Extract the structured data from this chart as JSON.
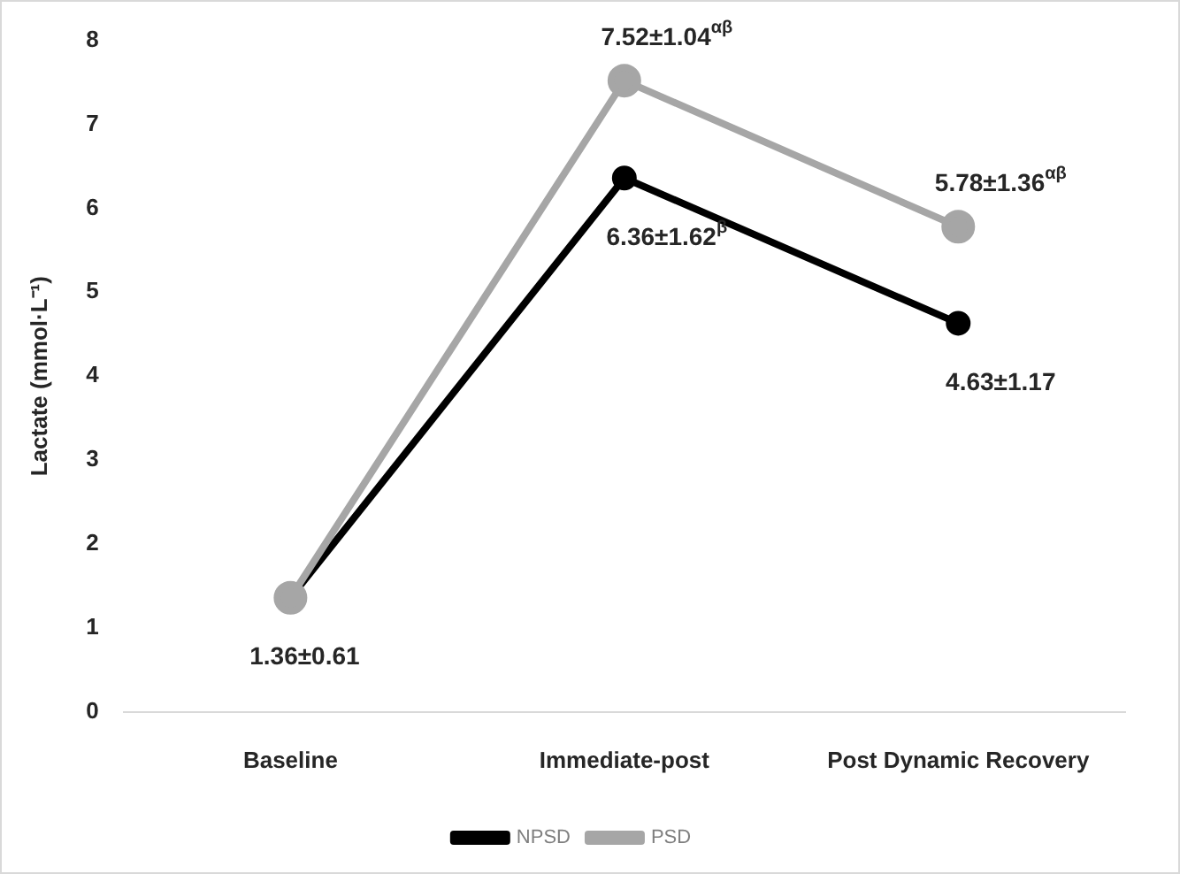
{
  "chart_data": {
    "type": "line",
    "ylabel": "Lactate (mmol·L⁻¹)",
    "categories": [
      "Baseline",
      "Immediate-post",
      "Post Dynamic Recovery"
    ],
    "series": [
      {
        "name": "NPSD",
        "color": "#000000",
        "values": [
          1.36,
          6.36,
          4.63
        ]
      },
      {
        "name": "PSD",
        "color": "#a6a6a6",
        "values": [
          1.36,
          7.52,
          5.78
        ]
      }
    ],
    "ylim": [
      0,
      8
    ],
    "yticks": [
      0,
      1,
      2,
      3,
      4,
      5,
      6,
      7,
      8
    ],
    "grid": false,
    "legend": "bottom",
    "marker": "circle",
    "line_style": "solid",
    "annotations": [
      {
        "text": "1.36±0.61",
        "x": "Baseline",
        "y": 1.36
      },
      {
        "text": "7.52±1.04$^{αβ}$",
        "x": "Immediate-post",
        "y": 7.52
      },
      {
        "text": "6.36±1.62$^{β}$",
        "x": "Immediate-post",
        "y": 6.36
      },
      {
        "text": "5.78±1.36$^{αβ}$",
        "x": "Post Dynamic Recovery",
        "y": 5.78
      },
      {
        "text": "4.63±1.17",
        "x": "Post Dynamic Recovery",
        "y": 4.63
      }
    ]
  }
}
